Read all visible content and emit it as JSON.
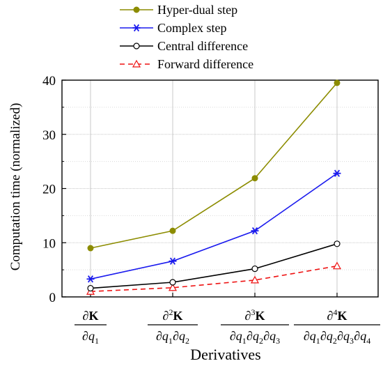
{
  "chart_data": {
    "type": "line",
    "title": "",
    "xlabel": "Derivatives",
    "ylabel": "Computation time (normalized)",
    "ylim": [
      0,
      40
    ],
    "yticks": [
      "0",
      "10",
      "20",
      "30",
      "40"
    ],
    "grid": "on",
    "legend_position": "top-center (above plot)",
    "categories": [
      {
        "num_order": "1",
        "num_vars": "K",
        "den": [
          "q1"
        ]
      },
      {
        "num_order": "2",
        "num_vars": "K",
        "den": [
          "q1",
          "q2"
        ]
      },
      {
        "num_order": "3",
        "num_vars": "K",
        "den": [
          "q1",
          "q2",
          "q3"
        ]
      },
      {
        "num_order": "4",
        "num_vars": "K",
        "den": [
          "q1",
          "q2",
          "q3",
          "q4"
        ]
      }
    ],
    "series": [
      {
        "name": "Hyper-dual step",
        "values": [
          9.0,
          12.2,
          21.9,
          39.5
        ],
        "color": "#8c8c00",
        "marker": "filled-circle",
        "dash": "solid"
      },
      {
        "name": "Complex step",
        "values": [
          3.3,
          6.6,
          12.2,
          22.8
        ],
        "color": "#1a1aee",
        "marker": "asterisk",
        "dash": "solid"
      },
      {
        "name": "Central difference",
        "values": [
          1.6,
          2.7,
          5.2,
          9.8
        ],
        "color": "#000000",
        "marker": "open-circle",
        "dash": "solid"
      },
      {
        "name": "Forward difference",
        "values": [
          1.0,
          1.7,
          3.1,
          5.7
        ],
        "color": "#ee1111",
        "marker": "open-triangle",
        "dash": "dashed"
      }
    ]
  }
}
